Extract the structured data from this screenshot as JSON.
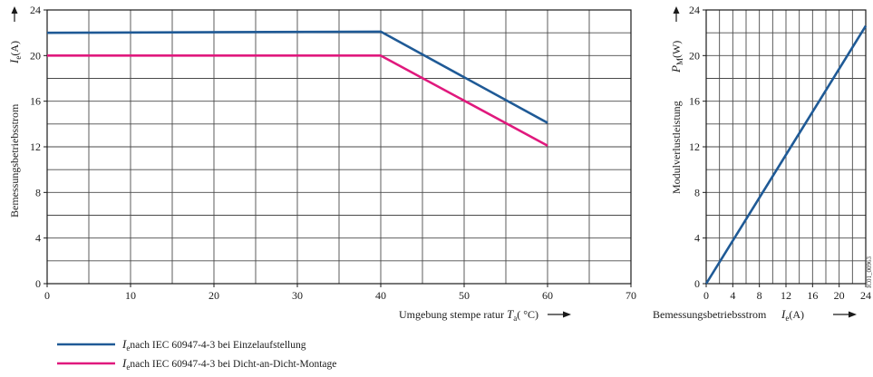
{
  "chart_data": [
    {
      "type": "line",
      "xlim": [
        0,
        70
      ],
      "ylim": [
        0,
        24
      ],
      "x_ticks": [
        "0",
        "10",
        "20",
        "30",
        "40",
        "50",
        "60",
        "70"
      ],
      "y_ticks": [
        "0",
        "4",
        "8",
        "12",
        "16",
        "20",
        "24"
      ],
      "grid": true,
      "x_grid_step": 5,
      "y_grid_step": 2,
      "xlabel": {
        "text": "Umgebung stempe ratur ",
        "sym": "T",
        "sub": "a",
        "unit": "( °C)"
      },
      "ylabel": {
        "text": "Bemessungsbetriebsstrom",
        "sym": "I",
        "sub": "e",
        "unit": "(A)"
      },
      "series": [
        {
          "name": "nach IEC 60947-4-3 bei Einzelaufstellung",
          "sym": "I",
          "sub": "e",
          "color": "#1f5a96",
          "x": [
            0,
            40,
            60
          ],
          "y": [
            22,
            22.1,
            14.1
          ]
        },
        {
          "name": "nach IEC 60947-4-3 bei Dicht-an-Dicht-Montage",
          "sym": "I",
          "sub": "e",
          "color": "#e0197d",
          "x": [
            0,
            40,
            60
          ],
          "y": [
            20,
            20,
            12.1
          ]
        }
      ]
    },
    {
      "type": "line",
      "xlim": [
        0,
        24
      ],
      "ylim": [
        0,
        24
      ],
      "x_ticks": [
        "0",
        "4",
        "8",
        "12",
        "16",
        "20",
        "24"
      ],
      "y_ticks": [
        "0",
        "4",
        "8",
        "12",
        "16",
        "20",
        "24"
      ],
      "grid": true,
      "x_grid_step": 2,
      "y_grid_step": 2,
      "xlabel": {
        "text": "Bemessungsbetriebsstrom",
        "sym": "I",
        "sub": "e",
        "unit": "(A)"
      },
      "ylabel": {
        "text": "Modulverlustleistung",
        "sym": "P",
        "sub": "M",
        "unit": "(W)"
      },
      "series": [
        {
          "color": "#1f5a96",
          "x": [
            0,
            24
          ],
          "y": [
            0,
            22.6
          ]
        }
      ]
    }
  ],
  "figure_code": "IC01_00963"
}
